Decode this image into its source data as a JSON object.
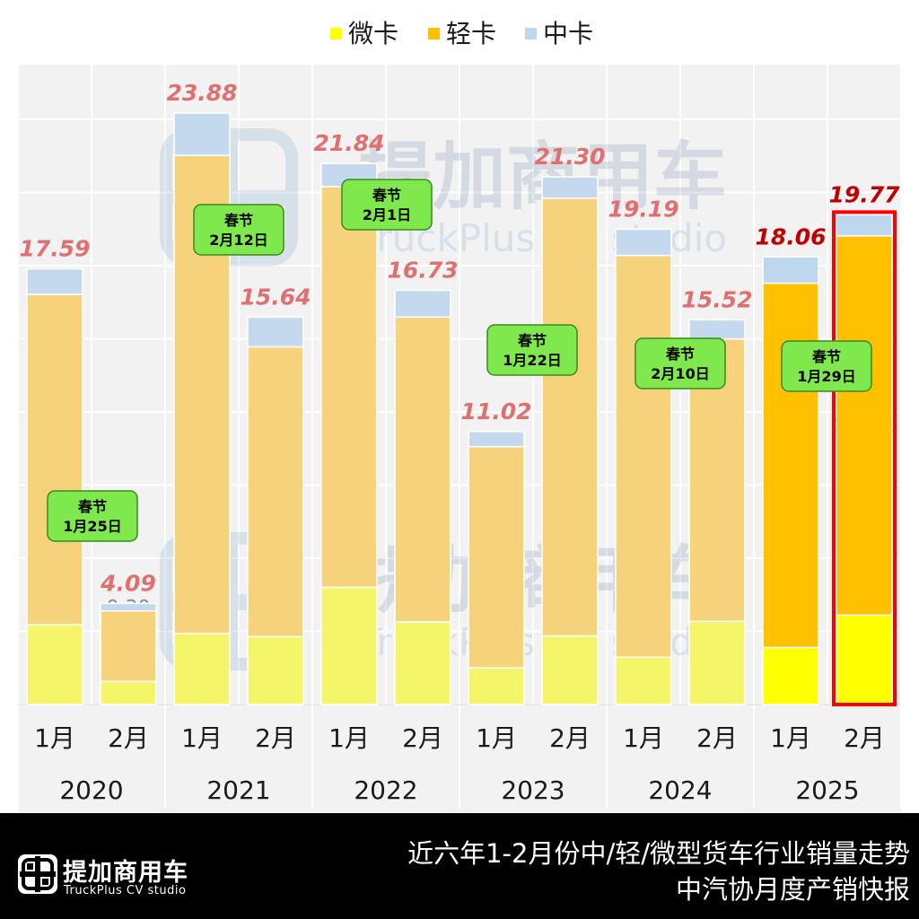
{
  "chart_data": {
    "type": "bar",
    "stacked": true,
    "legend_position": "top-center",
    "series": [
      {
        "name": "微卡",
        "color": "#ffff00",
        "values": [
          3.22,
          0.93,
          2.87,
          2.74,
          4.73,
          3.34,
          1.48,
          2.77,
          1.91,
          3.36,
          2.3,
          3.61
        ]
      },
      {
        "name": "轻卡",
        "color": "#ffc000",
        "values": [
          13.34,
          2.85,
          19.3,
          11.7,
          16.18,
          12.3,
          8.93,
          17.67,
          16.22,
          11.4,
          14.71,
          15.31
        ]
      },
      {
        "name": "中卡",
        "color": "#bdd7ee",
        "values": [
          1.03,
          0.3,
          1.71,
          1.2,
          0.93,
          1.08,
          0.61,
          0.86,
          1.06,
          0.77,
          1.06,
          0.85
        ]
      }
    ],
    "months": [
      "1月",
      "2月",
      "1月",
      "2月",
      "1月",
      "2月",
      "1月",
      "2月",
      "1月",
      "2月",
      "1月",
      "2月"
    ],
    "years": [
      "2020",
      "2021",
      "2022",
      "2023",
      "2024",
      "2025"
    ],
    "value_labels": {
      "segments": [
        [
          "3.22",
          "0.93",
          "2.87",
          "2.74",
          "4.73",
          "3.34",
          "1.48",
          "2.77",
          "1.91",
          "3.36",
          "2.30",
          "3.61"
        ],
        [
          "13.34",
          "2.85",
          "19.30",
          "11.70",
          "16.18",
          "12.30",
          "8.93",
          "17.67",
          "16.22",
          "11.40",
          "14.71",
          "15.31"
        ],
        [
          "1.03",
          "0.30",
          "1.71",
          "1.20",
          "0.93",
          "1.08",
          "0.61",
          "0.86",
          "1.06",
          "0.77",
          "1.06",
          "0.85"
        ]
      ],
      "totals": [
        "17.59",
        "4.09",
        "23.88",
        "15.64",
        "21.84",
        "16.73",
        "11.02",
        "21.30",
        "19.19",
        "15.52",
        "18.06",
        "19.77"
      ]
    },
    "spring_festival": [
      {
        "label": "春节",
        "date": "1月25日",
        "year": "2020"
      },
      {
        "label": "春节",
        "date": "2月12日",
        "year": "2021"
      },
      {
        "label": "春节",
        "date": "2月1日",
        "year": "2022"
      },
      {
        "label": "春节",
        "date": "1月22日",
        "year": "2023"
      },
      {
        "label": "春节",
        "date": "2月10日",
        "year": "2024"
      },
      {
        "label": "春节",
        "date": "1月29日",
        "year": "2025"
      }
    ],
    "highlight": {
      "index": 11,
      "color": "#ff0000"
    },
    "faded_years": [
      "2020",
      "2021",
      "2022",
      "2023",
      "2024"
    ],
    "ylim": [
      0,
      27
    ],
    "grid": true,
    "colors": {
      "faded_mini": "#f5f56a",
      "faded_light": "#f6d27a",
      "faded_mid": "#c5d9ee",
      "total_label_faded": "#e07070",
      "total_label_2025": "#c00000",
      "grid_bg": "#f2f2f2"
    }
  },
  "watermark": {
    "cn": "提加商用车",
    "en": "TruckPlus CV studio"
  },
  "footer": {
    "logo_cn": "提加商用车",
    "logo_en": "TruckPlus CV studio",
    "title_line1": "近六年1-2月份中/轻/微型货车行业销量走势",
    "title_line2": "中汽协月度产销快报"
  }
}
